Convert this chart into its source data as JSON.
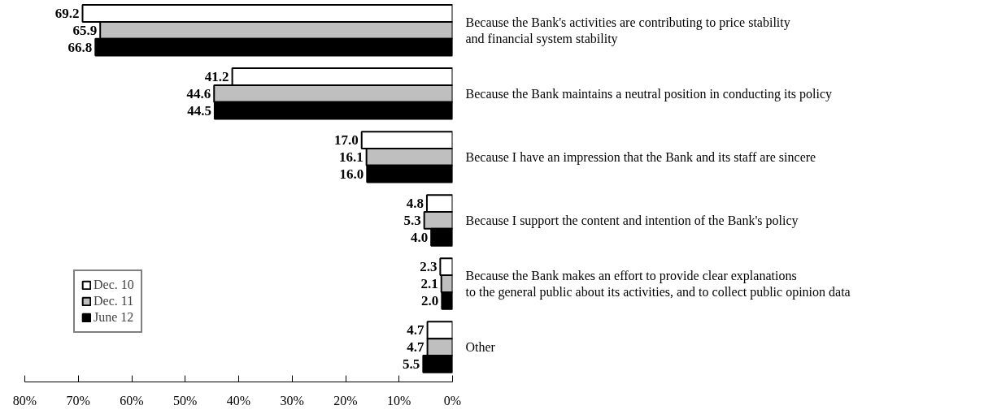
{
  "chart_data": {
    "type": "bar",
    "orientation": "horizontal",
    "categories": [
      "Because the Bank's activities are contributing to price stability\nand financial system stability",
      "Because the Bank maintains a neutral position in conducting its policy",
      "Because I have an impression that the Bank and its staff are sincere",
      "Because I support the content and intention of the Bank's policy",
      "Because the Bank makes an effort to provide clear explanations\nto the general public about its activities, and to collect public opinion data",
      "Other"
    ],
    "series": [
      {
        "name": "Dec. 10",
        "color": "#ffffff",
        "values": [
          69.2,
          41.2,
          17.0,
          4.8,
          2.3,
          4.7
        ],
        "value_labels": [
          "69.2",
          "41.2",
          "17.0",
          "4.8",
          "2.3",
          "4.7"
        ]
      },
      {
        "name": "Dec. 11",
        "color": "#bfbfbf",
        "values": [
          65.9,
          44.6,
          16.1,
          5.3,
          2.1,
          4.7
        ],
        "value_labels": [
          "65.9",
          "44.6",
          "16.1",
          "5.3",
          "2.1",
          "4.7"
        ]
      },
      {
        "name": "June 12",
        "color": "#000000",
        "values": [
          66.8,
          44.5,
          16.0,
          4.0,
          2.0,
          5.5
        ],
        "value_labels": [
          "66.8",
          "44.5",
          "16.0",
          "4.0",
          "2.0",
          "5.5"
        ]
      }
    ],
    "xlim": [
      80,
      0
    ],
    "xticks": [
      {
        "value": 80,
        "label": "80%"
      },
      {
        "value": 70,
        "label": "70%"
      },
      {
        "value": 60,
        "label": "60%"
      },
      {
        "value": 50,
        "label": "50%"
      },
      {
        "value": 40,
        "label": "40%"
      },
      {
        "value": 30,
        "label": "30%"
      },
      {
        "value": 20,
        "label": "20%"
      },
      {
        "value": 10,
        "label": "10%"
      },
      {
        "value": 0,
        "label": "0%"
      }
    ],
    "grid": false,
    "legend": "bottom left"
  }
}
